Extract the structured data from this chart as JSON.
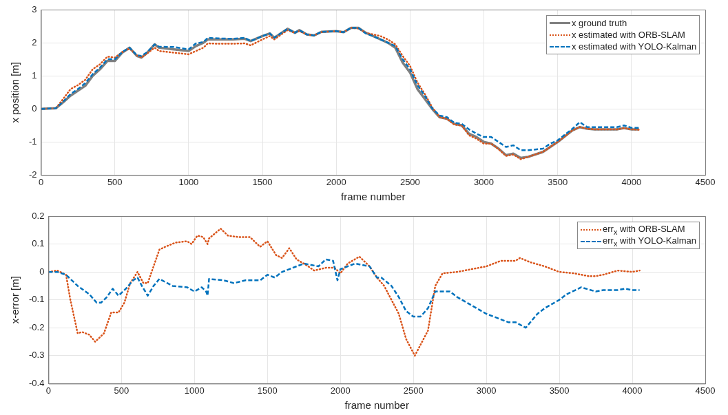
{
  "chart_data": [
    {
      "type": "line",
      "xlabel": "frame number",
      "ylabel": "x position [m]",
      "x": [
        0,
        100,
        150,
        200,
        250,
        300,
        350,
        400,
        450,
        500,
        550,
        600,
        650,
        680,
        720,
        770,
        800,
        900,
        1000,
        1050,
        1100,
        1130,
        1200,
        1300,
        1380,
        1420,
        1500,
        1550,
        1580,
        1670,
        1720,
        1750,
        1800,
        1850,
        1900,
        2000,
        2050,
        2100,
        2150,
        2200,
        2250,
        2300,
        2350,
        2400,
        2450,
        2500,
        2550,
        2600,
        2650,
        2700,
        2750,
        2800,
        2850,
        2900,
        2950,
        3000,
        3050,
        3100,
        3150,
        3200,
        3250,
        3300,
        3400,
        3450,
        3500,
        3600,
        3650,
        3700,
        3750,
        3900,
        3950,
        4000,
        4050
      ],
      "series": [
        {
          "name": "x ground truth",
          "color": "#808080",
          "line_style": "solid",
          "values": [
            0,
            0.02,
            0.2,
            0.4,
            0.55,
            0.7,
            1.0,
            1.2,
            1.45,
            1.45,
            1.7,
            1.85,
            1.6,
            1.55,
            1.7,
            1.95,
            1.85,
            1.8,
            1.75,
            1.9,
            2.0,
            2.1,
            2.1,
            2.1,
            2.12,
            2.05,
            2.2,
            2.28,
            2.15,
            2.42,
            2.3,
            2.38,
            2.25,
            2.22,
            2.33,
            2.35,
            2.32,
            2.45,
            2.45,
            2.3,
            2.2,
            2.1,
            2.0,
            1.85,
            1.4,
            1.1,
            0.6,
            0.3,
            0.0,
            -0.25,
            -0.3,
            -0.45,
            -0.5,
            -0.75,
            -0.85,
            -1.0,
            -1.05,
            -1.2,
            -1.4,
            -1.35,
            -1.48,
            -1.45,
            -1.3,
            -1.15,
            -1.0,
            -0.65,
            -0.55,
            -0.6,
            -0.62,
            -0.62,
            -0.58,
            -0.62,
            -0.62
          ]
        },
        {
          "name": "x estimated with ORB-SLAM",
          "color": "#d95319",
          "line_style": "dotted",
          "values": [
            0,
            0.02,
            0.3,
            0.6,
            0.72,
            0.88,
            1.2,
            1.35,
            1.58,
            1.55,
            1.72,
            1.82,
            1.62,
            1.55,
            1.68,
            1.85,
            1.75,
            1.7,
            1.65,
            1.75,
            1.85,
            1.98,
            1.97,
            1.97,
            1.98,
            1.92,
            2.1,
            2.2,
            2.1,
            2.38,
            2.3,
            2.35,
            2.25,
            2.22,
            2.32,
            2.35,
            2.32,
            2.45,
            2.43,
            2.3,
            2.25,
            2.2,
            2.1,
            1.95,
            1.6,
            1.3,
            0.8,
            0.45,
            0.05,
            -0.25,
            -0.3,
            -0.48,
            -0.5,
            -0.8,
            -0.9,
            -1.05,
            -1.05,
            -1.22,
            -1.42,
            -1.38,
            -1.52,
            -1.45,
            -1.3,
            -1.15,
            -1.0,
            -0.65,
            -0.55,
            -0.6,
            -0.62,
            -0.62,
            -0.58,
            -0.62,
            -0.63
          ]
        },
        {
          "name": "x estimated with YOLO-Kalman",
          "color": "#0072bd",
          "line_style": "dashed",
          "values": [
            0,
            0.02,
            0.22,
            0.45,
            0.6,
            0.78,
            1.05,
            1.25,
            1.5,
            1.5,
            1.72,
            1.85,
            1.62,
            1.6,
            1.72,
            1.95,
            1.88,
            1.87,
            1.8,
            1.98,
            2.02,
            2.15,
            2.13,
            2.12,
            2.15,
            2.05,
            2.2,
            2.28,
            2.15,
            2.42,
            2.3,
            2.38,
            2.25,
            2.22,
            2.33,
            2.35,
            2.32,
            2.45,
            2.45,
            2.28,
            2.2,
            2.1,
            2.0,
            1.9,
            1.5,
            1.2,
            0.72,
            0.4,
            0.02,
            -0.2,
            -0.25,
            -0.42,
            -0.45,
            -0.62,
            -0.75,
            -0.85,
            -0.85,
            -1.0,
            -1.15,
            -1.1,
            -1.25,
            -1.25,
            -1.2,
            -1.05,
            -0.95,
            -0.6,
            -0.4,
            -0.55,
            -0.55,
            -0.55,
            -0.5,
            -0.57,
            -0.57
          ]
        }
      ],
      "xlim": [
        0,
        4500
      ],
      "xticks": [
        0,
        500,
        1000,
        1500,
        2000,
        2500,
        3000,
        3500,
        4000,
        4500
      ],
      "ylim": [
        -2,
        3
      ],
      "yticks": [
        -2,
        -1,
        0,
        1,
        2,
        3
      ],
      "grid": true,
      "legend": "top right",
      "marker": "none"
    },
    {
      "type": "line",
      "xlabel": "frame number",
      "ylabel": "x-error [m]",
      "series": [
        {
          "name": "err$_{x}$ with ORB-SLAM",
          "color": "#d95319",
          "line_style": "dotted",
          "x": [
            0,
            60,
            120,
            150,
            200,
            230,
            280,
            320,
            380,
            430,
            480,
            520,
            560,
            610,
            650,
            680,
            760,
            800,
            870,
            950,
            980,
            1020,
            1060,
            1090,
            1100,
            1180,
            1230,
            1300,
            1380,
            1450,
            1500,
            1560,
            1600,
            1650,
            1700,
            1780,
            1820,
            1900,
            1960,
            2000,
            2050,
            2130,
            2200,
            2250,
            2300,
            2350,
            2400,
            2450,
            2480,
            2510,
            2560,
            2600,
            2650,
            2700,
            2800,
            2900,
            3000,
            3100,
            3200,
            3230,
            3300,
            3400,
            3500,
            3600,
            3700,
            3750,
            3800,
            3900,
            4000,
            4050
          ],
          "values": [
            0,
            0.005,
            -0.01,
            -0.1,
            -0.22,
            -0.215,
            -0.225,
            -0.25,
            -0.22,
            -0.145,
            -0.145,
            -0.11,
            -0.04,
            0.0,
            -0.04,
            -0.04,
            0.08,
            0.09,
            0.105,
            0.11,
            0.1,
            0.13,
            0.125,
            0.1,
            0.12,
            0.155,
            0.13,
            0.125,
            0.125,
            0.09,
            0.11,
            0.06,
            0.05,
            0.085,
            0.045,
            0.02,
            0.005,
            0.015,
            0.015,
            -0.005,
            0.03,
            0.055,
            0.02,
            -0.02,
            -0.05,
            -0.1,
            -0.15,
            -0.24,
            -0.27,
            -0.3,
            -0.25,
            -0.21,
            -0.05,
            -0.005,
            0.0,
            0.01,
            0.02,
            0.04,
            0.04,
            0.05,
            0.035,
            0.02,
            0.0,
            -0.005,
            -0.015,
            -0.015,
            -0.01,
            0.005,
            0.0,
            0.005
          ]
        },
        {
          "name": "err$_{x}$ with YOLO-Kalman",
          "color": "#0072bd",
          "line_style": "dashed",
          "x": [
            0,
            60,
            120,
            200,
            280,
            330,
            360,
            400,
            440,
            480,
            530,
            580,
            610,
            640,
            680,
            720,
            760,
            850,
            950,
            1000,
            1050,
            1080,
            1090,
            1100,
            1200,
            1270,
            1350,
            1450,
            1500,
            1550,
            1600,
            1650,
            1700,
            1750,
            1800,
            1850,
            1900,
            1950,
            1980,
            2000,
            2050,
            2100,
            2200,
            2250,
            2280,
            2350,
            2400,
            2450,
            2500,
            2550,
            2600,
            2650,
            2700,
            2750,
            2800,
            2900,
            3000,
            3100,
            3150,
            3200,
            3270,
            3350,
            3400,
            3500,
            3550,
            3650,
            3750,
            3800,
            3900,
            3950,
            4000,
            4050
          ],
          "values": [
            0,
            0.0,
            -0.01,
            -0.05,
            -0.08,
            -0.11,
            -0.11,
            -0.09,
            -0.06,
            -0.085,
            -0.06,
            -0.03,
            -0.02,
            -0.05,
            -0.085,
            -0.05,
            -0.025,
            -0.05,
            -0.055,
            -0.07,
            -0.055,
            -0.07,
            -0.085,
            -0.025,
            -0.03,
            -0.04,
            -0.03,
            -0.03,
            -0.01,
            -0.02,
            0.0,
            0.01,
            0.02,
            0.03,
            0.025,
            0.02,
            0.045,
            0.04,
            -0.03,
            0.01,
            0.02,
            0.03,
            0.02,
            -0.02,
            -0.02,
            -0.05,
            -0.09,
            -0.14,
            -0.16,
            -0.16,
            -0.13,
            -0.07,
            -0.07,
            -0.07,
            -0.09,
            -0.12,
            -0.15,
            -0.17,
            -0.18,
            -0.18,
            -0.2,
            -0.15,
            -0.13,
            -0.1,
            -0.08,
            -0.055,
            -0.07,
            -0.065,
            -0.065,
            -0.06,
            -0.065,
            -0.065
          ]
        }
      ],
      "xlim": [
        0,
        4500
      ],
      "xticks": [
        0,
        500,
        1000,
        1500,
        2000,
        2500,
        3000,
        3500,
        4000,
        4500
      ],
      "ylim": [
        -0.4,
        0.2
      ],
      "yticks": [
        -0.4,
        -0.3,
        -0.2,
        -0.1,
        0,
        0.1,
        0.2
      ],
      "grid": true,
      "legend": "top right",
      "marker": "none"
    }
  ]
}
